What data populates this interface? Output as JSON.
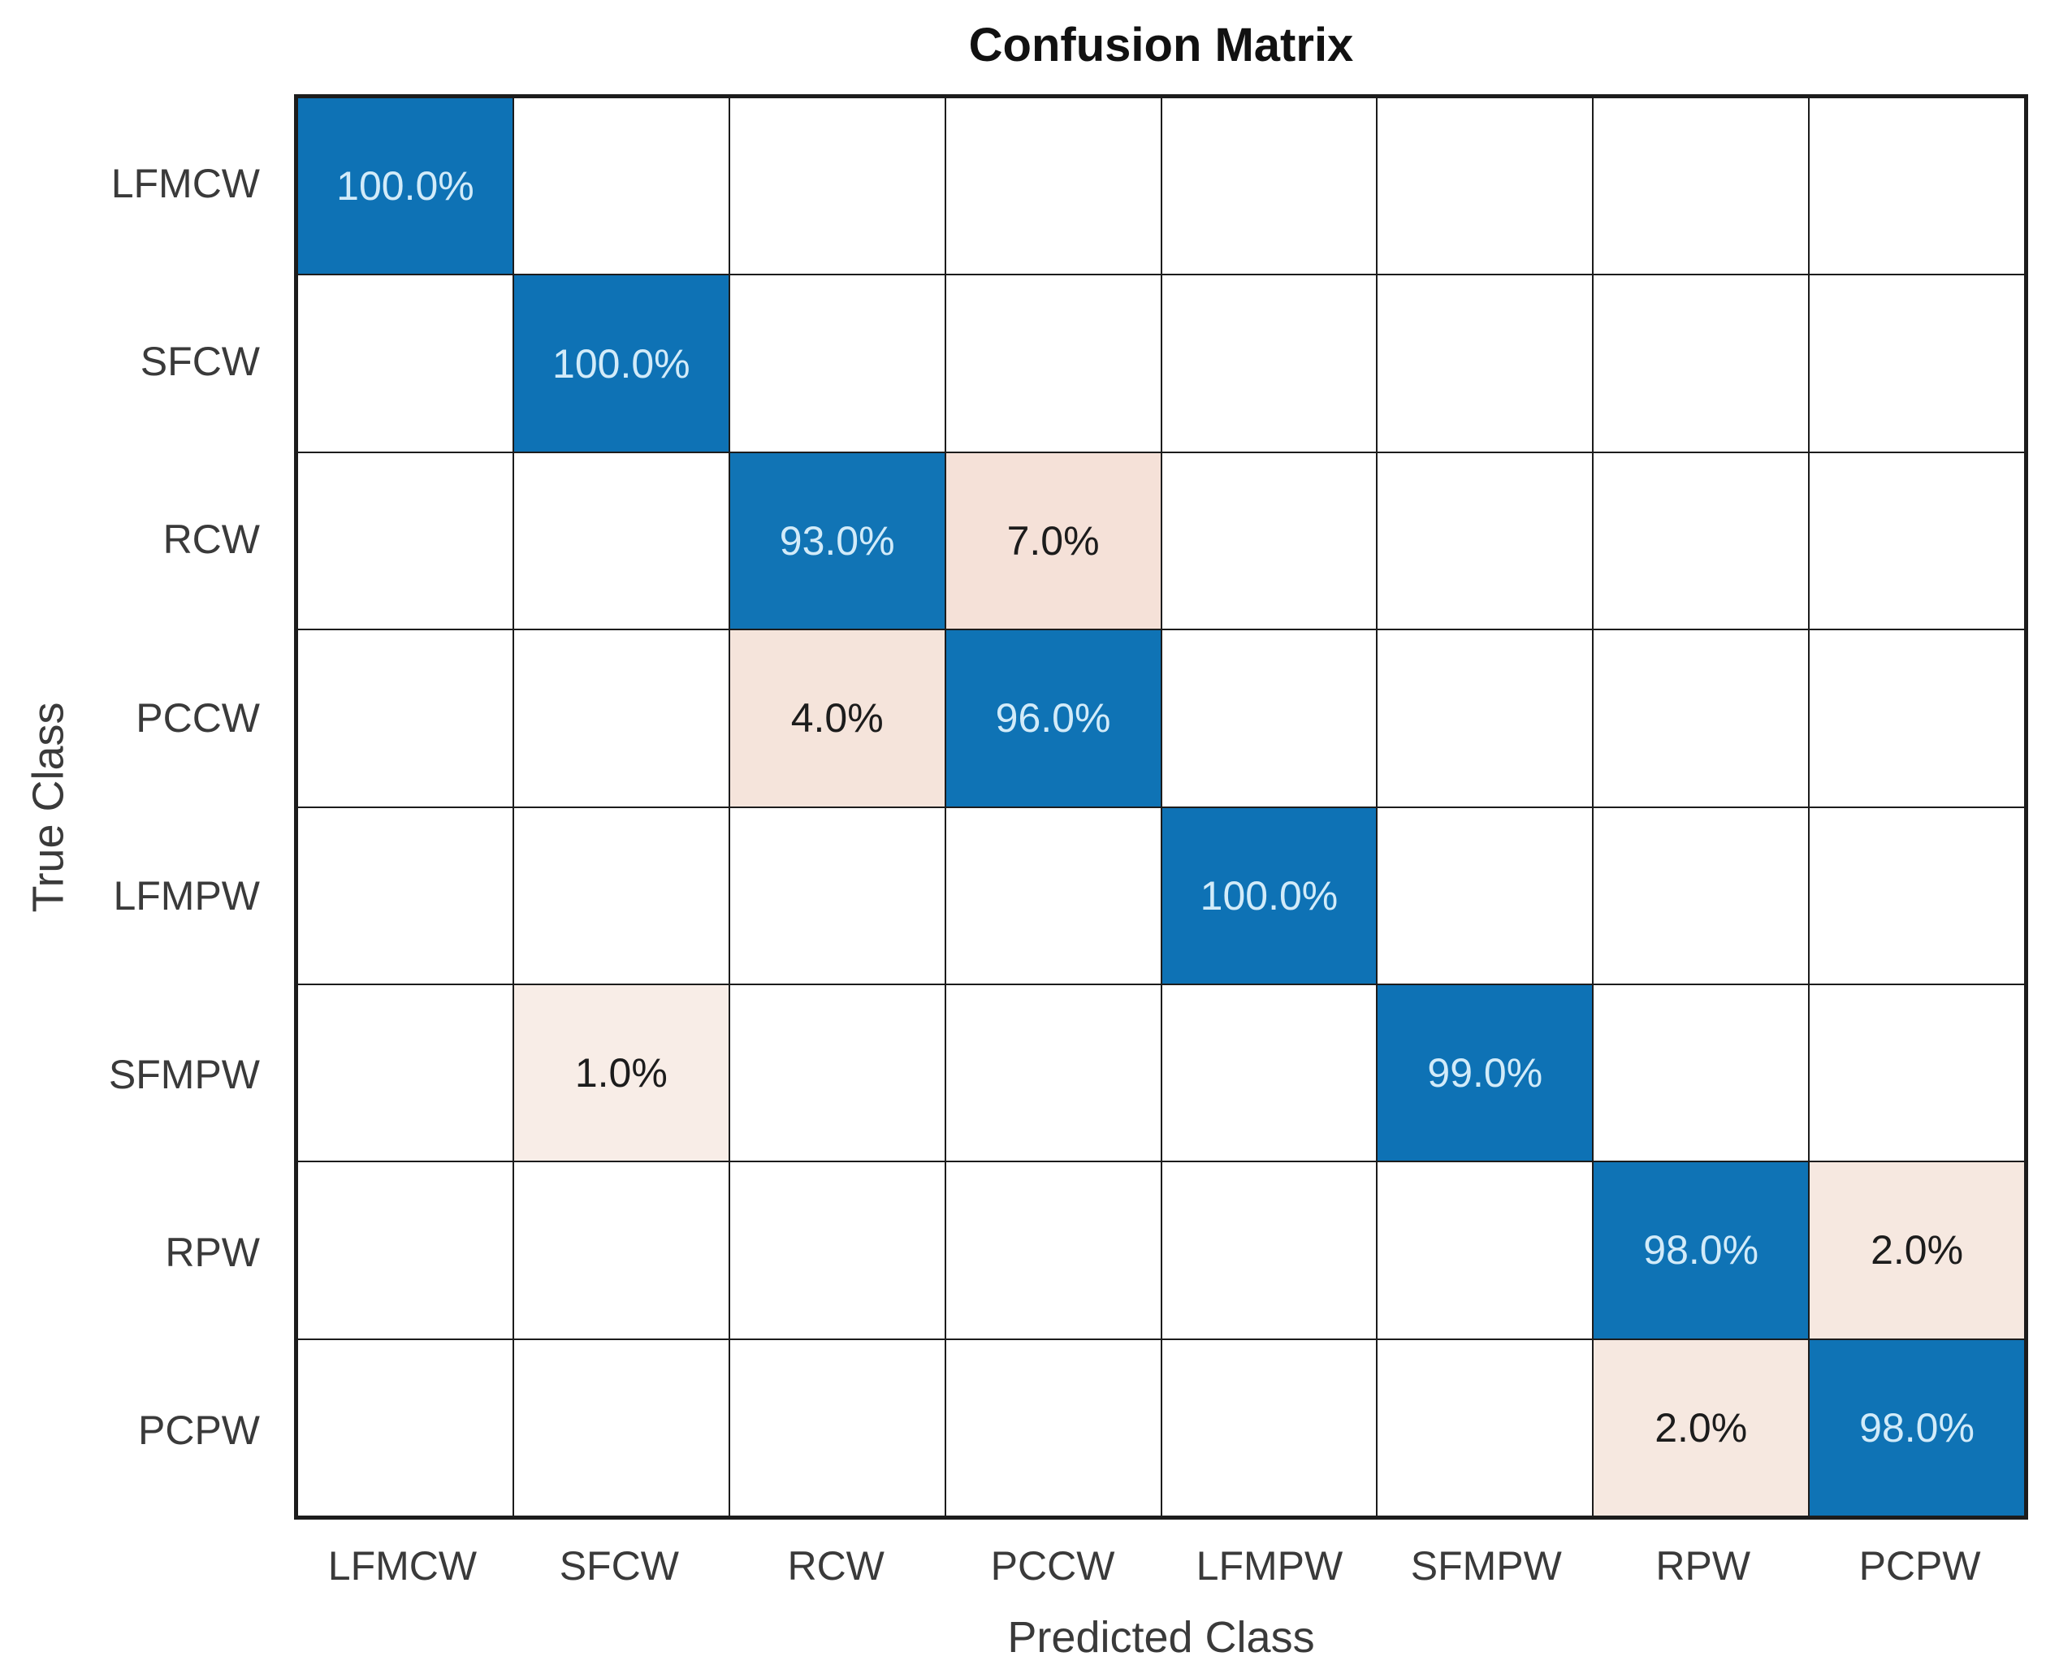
{
  "title": "Confusion Matrix",
  "axes": {
    "xlabel": "Predicted Class",
    "ylabel": "True Class"
  },
  "chart_data": {
    "type": "heatmap",
    "subtype": "confusion-matrix",
    "title": "Confusion Matrix",
    "xlabel": "Predicted Class",
    "ylabel": "True Class",
    "classes": [
      "LFMCW",
      "SFCW",
      "RCW",
      "PCCW",
      "LFMPW",
      "SFMPW",
      "RPW",
      "PCPW"
    ],
    "matrix_percent": [
      [
        100.0,
        0,
        0,
        0,
        0,
        0,
        0,
        0
      ],
      [
        0,
        100.0,
        0,
        0,
        0,
        0,
        0,
        0
      ],
      [
        0,
        0,
        93.0,
        7.0,
        0,
        0,
        0,
        0
      ],
      [
        0,
        0,
        4.0,
        96.0,
        0,
        0,
        0,
        0
      ],
      [
        0,
        0,
        0,
        0,
        100.0,
        0,
        0,
        0
      ],
      [
        0,
        1.0,
        0,
        0,
        0,
        99.0,
        0,
        0
      ],
      [
        0,
        0,
        0,
        0,
        0,
        0,
        98.0,
        2.0
      ],
      [
        0,
        0,
        0,
        0,
        0,
        0,
        2.0,
        98.0
      ]
    ],
    "filled_cells": [
      {
        "row": 0,
        "col": 0,
        "label": "100.0%",
        "kind": "diag",
        "bg": "#0e72b5"
      },
      {
        "row": 1,
        "col": 1,
        "label": "100.0%",
        "kind": "diag",
        "bg": "#0e72b5"
      },
      {
        "row": 2,
        "col": 2,
        "label": "93.0%",
        "kind": "diag",
        "bg": "#1174b5"
      },
      {
        "row": 2,
        "col": 3,
        "label": "7.0%",
        "kind": "offdiag",
        "bg": "#f5e1d8"
      },
      {
        "row": 3,
        "col": 2,
        "label": "4.0%",
        "kind": "offdiag",
        "bg": "#f5e4db"
      },
      {
        "row": 3,
        "col": 3,
        "label": "96.0%",
        "kind": "diag",
        "bg": "#0f73b5"
      },
      {
        "row": 4,
        "col": 4,
        "label": "100.0%",
        "kind": "diag",
        "bg": "#0e72b5"
      },
      {
        "row": 5,
        "col": 1,
        "label": "1.0%",
        "kind": "offdiag",
        "bg": "#f8ede7"
      },
      {
        "row": 5,
        "col": 5,
        "label": "99.0%",
        "kind": "diag",
        "bg": "#0e72b5"
      },
      {
        "row": 6,
        "col": 6,
        "label": "98.0%",
        "kind": "diag",
        "bg": "#0f73b5"
      },
      {
        "row": 6,
        "col": 7,
        "label": "2.0%",
        "kind": "offdiag",
        "bg": "#f6e8e0"
      },
      {
        "row": 7,
        "col": 6,
        "label": "2.0%",
        "kind": "offdiag",
        "bg": "#f6e8e0"
      },
      {
        "row": 7,
        "col": 7,
        "label": "98.0%",
        "kind": "diag",
        "bg": "#0f73b5"
      }
    ],
    "colors": {
      "diagonal_fill": "#0e72b5",
      "offdiagonal_fill": "#f5e3da",
      "empty_fill": "#ffffff",
      "diagonal_text": "#d2ebf9",
      "offdiagonal_text": "#1c1c1c",
      "grid_line": "#1c1c1c",
      "axis_text": "#3a3a3a",
      "title_text": "#111111",
      "background": "#ffffff"
    },
    "layout": {
      "rows": 8,
      "cols": 8,
      "grid_on": true,
      "legend": "none"
    }
  }
}
